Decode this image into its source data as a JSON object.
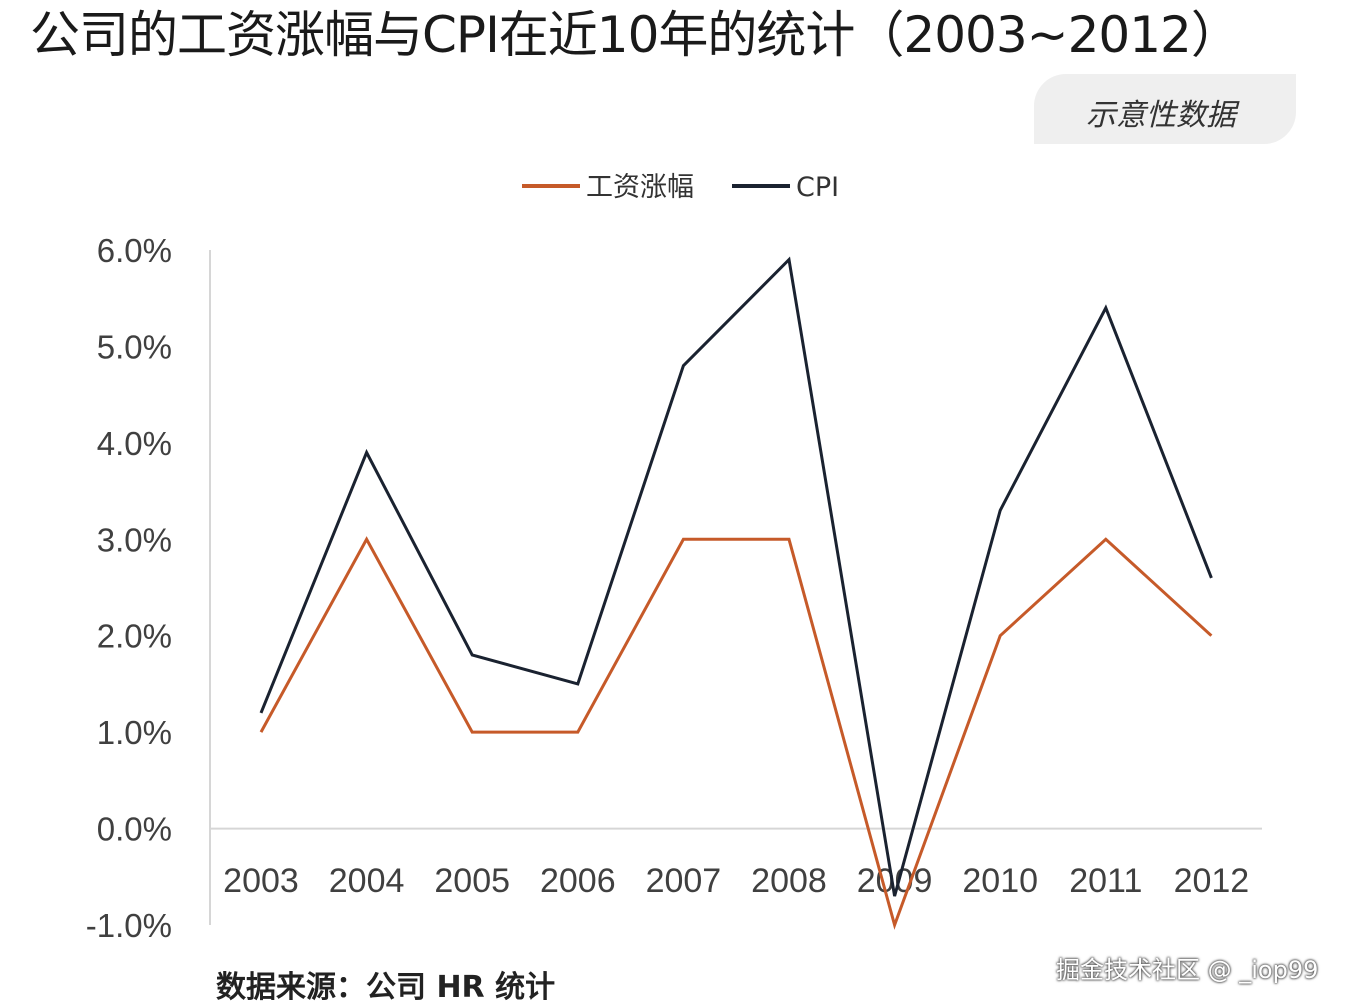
{
  "chart_data": {
    "type": "line",
    "title": "公司的工资涨幅与CPI在近10年的统计（2003~2012）",
    "subtitle": "示意性数据",
    "categories": [
      "2003",
      "2004",
      "2005",
      "2006",
      "2007",
      "2008",
      "2009",
      "2010",
      "2011",
      "2012"
    ],
    "series": [
      {
        "name": "工资涨幅",
        "color": "#c65a29",
        "values": [
          1.0,
          3.0,
          1.0,
          1.0,
          3.0,
          3.0,
          -1.0,
          2.0,
          3.0,
          2.0
        ]
      },
      {
        "name": "CPI",
        "color": "#1a2230",
        "values": [
          1.2,
          3.9,
          1.8,
          1.5,
          4.8,
          5.9,
          -0.7,
          3.3,
          5.4,
          2.6
        ]
      }
    ],
    "yticks": [
      "6.0%",
      "5.0%",
      "4.0%",
      "3.0%",
      "2.0%",
      "1.0%",
      "0.0%",
      "-1.0%"
    ],
    "ytick_values": [
      6,
      5,
      4,
      3,
      2,
      1,
      0,
      -1
    ],
    "ylim": [
      -1,
      6
    ],
    "xlabel": "",
    "ylabel": "",
    "legend_position": "top-center",
    "source": "数据来源：公司 HR 统计"
  },
  "watermark": "掘金技术社区 @ _iop99"
}
